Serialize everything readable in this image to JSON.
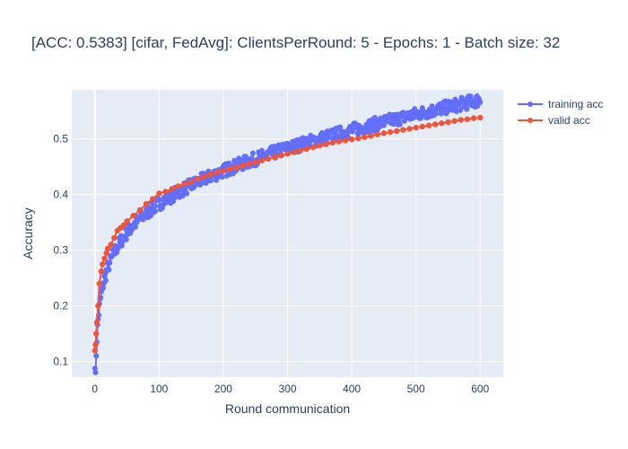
{
  "chart_data": {
    "type": "line",
    "title": "[ACC: 0.5383] [cifar, FedAvg]: ClientsPerRound: 5 - Epochs: 1 - Batch size: 32",
    "xlabel": "Round communication",
    "ylabel": "Accuracy",
    "xlim": [
      -36,
      636
    ],
    "ylim": [
      0.072,
      0.588
    ],
    "xticks": [
      0,
      100,
      200,
      300,
      400,
      500,
      600
    ],
    "yticks": [
      0.1,
      0.2,
      0.3,
      0.4,
      0.5
    ],
    "grid": true,
    "legend_position": "top-right",
    "series": [
      {
        "name": "training acc",
        "color": "#636efa",
        "mode": "lines+markers",
        "model": {
          "form": "a + b*ln(x) + c*x",
          "a": 0.07,
          "b": 0.065,
          "c": 0.00014,
          "start_value": 0.1,
          "noise": 0.012
        },
        "x_range": [
          0,
          600,
          1
        ]
      },
      {
        "name": "valid acc",
        "color": "#ef553b",
        "mode": "lines+markers",
        "x": [
          0,
          1,
          2,
          3,
          5,
          7,
          10,
          12,
          15,
          18,
          20,
          25,
          30,
          35,
          40,
          45,
          50,
          60,
          70,
          80,
          90,
          100,
          110,
          120,
          130,
          140,
          150,
          160,
          170,
          180,
          190,
          200,
          210,
          220,
          230,
          240,
          250,
          260,
          270,
          280,
          290,
          300,
          310,
          320,
          330,
          340,
          350,
          360,
          370,
          380,
          390,
          400,
          410,
          420,
          430,
          440,
          450,
          460,
          470,
          480,
          490,
          500,
          510,
          520,
          530,
          540,
          550,
          560,
          570,
          580,
          590,
          600
        ],
        "y": [
          0.12,
          0.13,
          0.15,
          0.17,
          0.2,
          0.24,
          0.262,
          0.275,
          0.285,
          0.295,
          0.303,
          0.31,
          0.322,
          0.335,
          0.34,
          0.345,
          0.352,
          0.362,
          0.372,
          0.383,
          0.392,
          0.402,
          0.405,
          0.41,
          0.415,
          0.419,
          0.422,
          0.428,
          0.432,
          0.436,
          0.44,
          0.443,
          0.446,
          0.449,
          0.452,
          0.455,
          0.458,
          0.461,
          0.464,
          0.467,
          0.47,
          0.473,
          0.476,
          0.479,
          0.482,
          0.485,
          0.488,
          0.49,
          0.493,
          0.495,
          0.497,
          0.499,
          0.501,
          0.503,
          0.505,
          0.508,
          0.51,
          0.512,
          0.514,
          0.516,
          0.518,
          0.52,
          0.522,
          0.524,
          0.526,
          0.528,
          0.53,
          0.532,
          0.534,
          0.535,
          0.537,
          0.538
        ]
      }
    ]
  }
}
